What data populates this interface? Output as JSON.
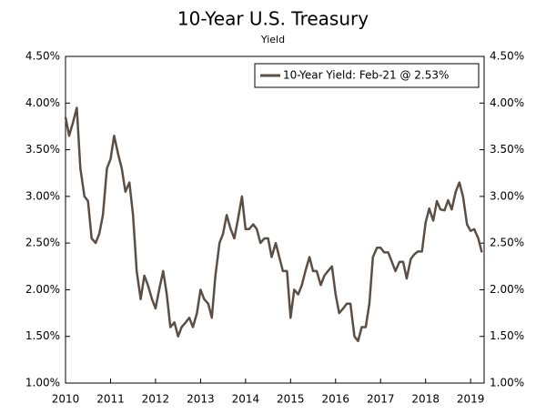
{
  "chart_data": {
    "type": "line",
    "title": "10-Year U.S. Treasury",
    "subtitle": "Yield",
    "x": [
      2010,
      2010.08,
      2010.17,
      2010.25,
      2010.33,
      2010.42,
      2010.5,
      2010.58,
      2010.67,
      2010.75,
      2010.83,
      2010.92,
      2011,
      2011.08,
      2011.17,
      2011.25,
      2011.33,
      2011.42,
      2011.5,
      2011.58,
      2011.67,
      2011.75,
      2011.83,
      2011.92,
      2012,
      2012.08,
      2012.17,
      2012.25,
      2012.33,
      2012.42,
      2012.5,
      2012.58,
      2012.67,
      2012.75,
      2012.83,
      2012.92,
      2013,
      2013.08,
      2013.17,
      2013.25,
      2013.33,
      2013.42,
      2013.5,
      2013.58,
      2013.67,
      2013.75,
      2013.83,
      2013.92,
      2014,
      2014.08,
      2014.17,
      2014.25,
      2014.33,
      2014.42,
      2014.5,
      2014.58,
      2014.67,
      2014.75,
      2014.83,
      2014.92,
      2015,
      2015.08,
      2015.17,
      2015.25,
      2015.33,
      2015.42,
      2015.5,
      2015.58,
      2015.67,
      2015.75,
      2015.83,
      2015.92,
      2016,
      2016.08,
      2016.17,
      2016.25,
      2016.33,
      2016.42,
      2016.5,
      2016.58,
      2016.67,
      2016.75,
      2016.83,
      2016.92,
      2017,
      2017.08,
      2017.17,
      2017.25,
      2017.33,
      2017.42,
      2017.5,
      2017.58,
      2017.67,
      2017.75,
      2017.83,
      2017.92,
      2018,
      2018.08,
      2018.17,
      2018.25,
      2018.33,
      2018.42,
      2018.5,
      2018.58,
      2018.67,
      2018.75,
      2018.83,
      2018.92,
      2019,
      2019.08,
      2019.17,
      2019.25
    ],
    "series": [
      {
        "name": "10-Year Yield: Feb-21 @ 2.53%",
        "color": "#5b4f45",
        "values": [
          3.85,
          3.65,
          3.8,
          3.95,
          3.3,
          3.0,
          2.95,
          2.55,
          2.5,
          2.6,
          2.8,
          3.3,
          3.4,
          3.65,
          3.45,
          3.3,
          3.05,
          3.15,
          2.8,
          2.2,
          1.9,
          2.15,
          2.05,
          1.9,
          1.8,
          2.0,
          2.2,
          1.95,
          1.6,
          1.65,
          1.5,
          1.6,
          1.65,
          1.7,
          1.6,
          1.75,
          2.0,
          1.9,
          1.85,
          1.7,
          2.15,
          2.5,
          2.6,
          2.8,
          2.65,
          2.55,
          2.75,
          3.0,
          2.65,
          2.65,
          2.7,
          2.65,
          2.5,
          2.55,
          2.55,
          2.35,
          2.5,
          2.35,
          2.2,
          2.2,
          1.7,
          2.0,
          1.95,
          2.05,
          2.2,
          2.35,
          2.2,
          2.2,
          2.05,
          2.15,
          2.2,
          2.25,
          1.95,
          1.75,
          1.8,
          1.85,
          1.85,
          1.5,
          1.45,
          1.6,
          1.6,
          1.85,
          2.35,
          2.45,
          2.45,
          2.4,
          2.4,
          2.3,
          2.2,
          2.3,
          2.3,
          2.12,
          2.33,
          2.38,
          2.41,
          2.41,
          2.72,
          2.87,
          2.74,
          2.95,
          2.86,
          2.85,
          2.96,
          2.86,
          3.05,
          3.15,
          3.0,
          2.7,
          2.63,
          2.65,
          2.55,
          2.4
        ]
      }
    ],
    "xlim": [
      2010,
      2019.3
    ],
    "xticks": [
      2010,
      2011,
      2012,
      2013,
      2014,
      2015,
      2016,
      2017,
      2018,
      2019
    ],
    "ylim": [
      1.0,
      4.5
    ],
    "yticks": [
      {
        "value": 1.0,
        "label": "1.00%"
      },
      {
        "value": 1.5,
        "label": "1.50%"
      },
      {
        "value": 2.0,
        "label": "2.00%"
      },
      {
        "value": 2.5,
        "label": "2.50%"
      },
      {
        "value": 3.0,
        "label": "3.00%"
      },
      {
        "value": 3.5,
        "label": "3.50%"
      },
      {
        "value": 4.0,
        "label": "4.00%"
      },
      {
        "value": 4.5,
        "label": "4.50%"
      }
    ],
    "y2lim": [
      1.0,
      4.5
    ],
    "y2ticks": [
      {
        "value": 1.0,
        "label": "1.00%"
      },
      {
        "value": 1.5,
        "label": "1.50%"
      },
      {
        "value": 2.0,
        "label": "2.00%"
      },
      {
        "value": 2.5,
        "label": "2.50%"
      },
      {
        "value": 3.0,
        "label": "3.00%"
      },
      {
        "value": 3.5,
        "label": "3.50%"
      },
      {
        "value": 4.0,
        "label": "4.00%"
      },
      {
        "value": 4.5,
        "label": "4.50%"
      }
    ],
    "legend": "upper right"
  }
}
